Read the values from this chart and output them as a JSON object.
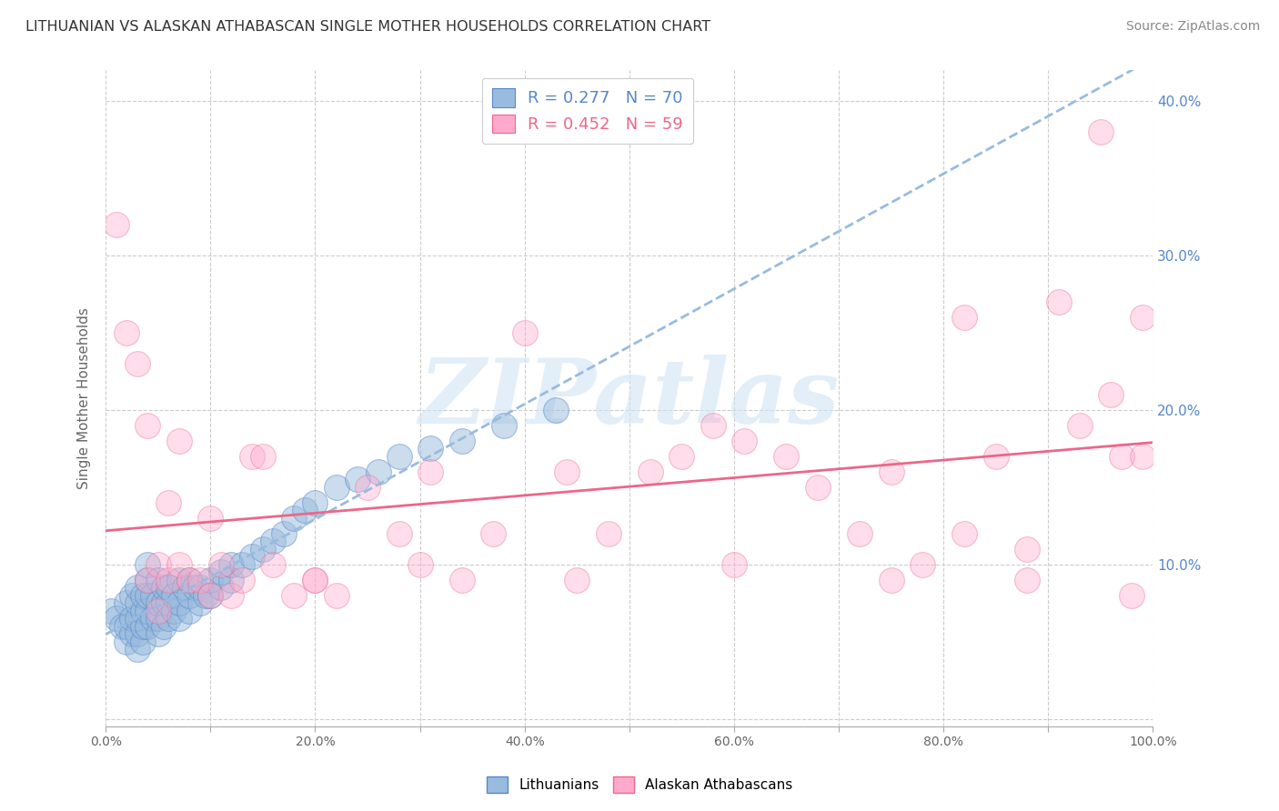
{
  "title": "LITHUANIAN VS ALASKAN ATHABASCAN SINGLE MOTHER HOUSEHOLDS CORRELATION CHART",
  "source": "Source: ZipAtlas.com",
  "ylabel": "Single Mother Households",
  "xlim": [
    0.0,
    1.0
  ],
  "ylim": [
    -0.005,
    0.42
  ],
  "xticks": [
    0.0,
    0.1,
    0.2,
    0.3,
    0.4,
    0.5,
    0.6,
    0.7,
    0.8,
    0.9,
    1.0
  ],
  "yticks": [
    0.0,
    0.1,
    0.2,
    0.3,
    0.4
  ],
  "ytick_labels_right": [
    "",
    "10.0%",
    "20.0%",
    "30.0%",
    "40.0%"
  ],
  "xtick_labels": [
    "0.0%",
    "",
    "20.0%",
    "",
    "40.0%",
    "",
    "60.0%",
    "",
    "80.0%",
    "",
    "100.0%"
  ],
  "color_blue": "#99BBDD",
  "color_pink": "#FFAACC",
  "color_blue_edge": "#5588CC",
  "color_pink_edge": "#EE6688",
  "color_blue_line": "#99BBDD",
  "color_pink_line": "#EE6688",
  "watermark_text": "ZIPatlas",
  "background_color": "#FFFFFF",
  "grid_color": "#CCCCCC",
  "R_blue": 0.277,
  "N_blue": 70,
  "R_pink": 0.452,
  "N_pink": 59,
  "blue_scatter_x": [
    0.005,
    0.01,
    0.015,
    0.02,
    0.02,
    0.02,
    0.025,
    0.025,
    0.025,
    0.03,
    0.03,
    0.03,
    0.03,
    0.03,
    0.035,
    0.035,
    0.035,
    0.035,
    0.04,
    0.04,
    0.04,
    0.04,
    0.04,
    0.045,
    0.045,
    0.05,
    0.05,
    0.05,
    0.05,
    0.055,
    0.055,
    0.055,
    0.06,
    0.06,
    0.06,
    0.065,
    0.065,
    0.07,
    0.07,
    0.07,
    0.075,
    0.08,
    0.08,
    0.08,
    0.085,
    0.09,
    0.09,
    0.095,
    0.1,
    0.1,
    0.11,
    0.11,
    0.12,
    0.12,
    0.13,
    0.14,
    0.15,
    0.16,
    0.17,
    0.18,
    0.19,
    0.2,
    0.22,
    0.24,
    0.26,
    0.28,
    0.31,
    0.34,
    0.38,
    0.43
  ],
  "blue_scatter_y": [
    0.07,
    0.065,
    0.06,
    0.05,
    0.06,
    0.075,
    0.055,
    0.065,
    0.08,
    0.045,
    0.055,
    0.065,
    0.075,
    0.085,
    0.05,
    0.06,
    0.07,
    0.08,
    0.06,
    0.07,
    0.08,
    0.09,
    0.1,
    0.065,
    0.08,
    0.055,
    0.065,
    0.075,
    0.09,
    0.06,
    0.075,
    0.085,
    0.065,
    0.075,
    0.085,
    0.07,
    0.08,
    0.065,
    0.075,
    0.09,
    0.085,
    0.07,
    0.08,
    0.09,
    0.085,
    0.075,
    0.085,
    0.08,
    0.08,
    0.09,
    0.085,
    0.095,
    0.09,
    0.1,
    0.1,
    0.105,
    0.11,
    0.115,
    0.12,
    0.13,
    0.135,
    0.14,
    0.15,
    0.155,
    0.16,
    0.17,
    0.175,
    0.18,
    0.19,
    0.2
  ],
  "pink_scatter_x": [
    0.01,
    0.02,
    0.03,
    0.04,
    0.04,
    0.05,
    0.06,
    0.06,
    0.07,
    0.07,
    0.08,
    0.09,
    0.1,
    0.11,
    0.12,
    0.13,
    0.14,
    0.16,
    0.18,
    0.2,
    0.22,
    0.25,
    0.28,
    0.31,
    0.34,
    0.37,
    0.4,
    0.44,
    0.48,
    0.52,
    0.55,
    0.58,
    0.61,
    0.65,
    0.68,
    0.72,
    0.75,
    0.78,
    0.82,
    0.85,
    0.88,
    0.91,
    0.93,
    0.95,
    0.96,
    0.97,
    0.98,
    0.99,
    0.99,
    0.88,
    0.82,
    0.75,
    0.6,
    0.45,
    0.3,
    0.2,
    0.15,
    0.1,
    0.05
  ],
  "pink_scatter_y": [
    0.32,
    0.25,
    0.23,
    0.19,
    0.09,
    0.1,
    0.09,
    0.14,
    0.1,
    0.18,
    0.09,
    0.09,
    0.08,
    0.1,
    0.08,
    0.09,
    0.17,
    0.1,
    0.08,
    0.09,
    0.08,
    0.15,
    0.12,
    0.16,
    0.09,
    0.12,
    0.25,
    0.16,
    0.12,
    0.16,
    0.17,
    0.19,
    0.18,
    0.17,
    0.15,
    0.12,
    0.16,
    0.1,
    0.12,
    0.17,
    0.09,
    0.27,
    0.19,
    0.38,
    0.21,
    0.17,
    0.08,
    0.26,
    0.17,
    0.11,
    0.26,
    0.09,
    0.1,
    0.09,
    0.1,
    0.09,
    0.17,
    0.13,
    0.07
  ]
}
